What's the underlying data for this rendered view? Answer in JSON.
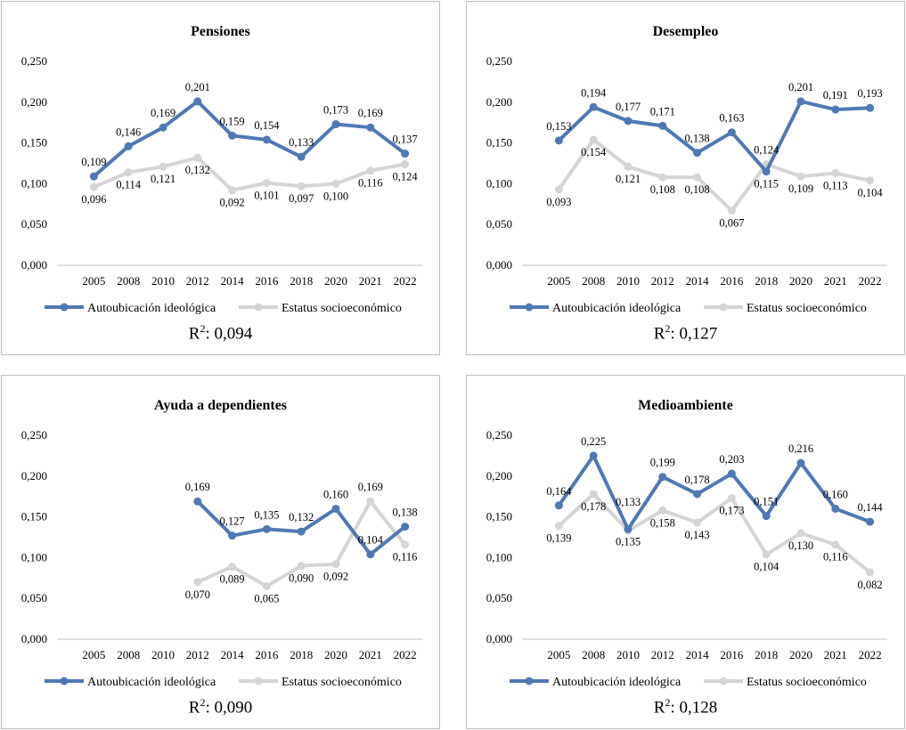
{
  "colors": {
    "series1": "#4e79b4",
    "series2": "#d4d4d4",
    "axis": "#bfbfbf",
    "text": "#000000"
  },
  "chart_data": [
    {
      "type": "line",
      "title": "Pensiones",
      "categories": [
        "2005",
        "2008",
        "2010",
        "2012",
        "2014",
        "2016",
        "2018",
        "2020",
        "2021",
        "2022"
      ],
      "ylim": [
        0,
        0.25
      ],
      "yticks": [
        "0,000",
        "0,050",
        "0,100",
        "0,150",
        "0,200",
        "0,250"
      ],
      "series": [
        {
          "name": "Autoubicación ideológica",
          "values": [
            0.109,
            0.146,
            0.169,
            0.201,
            0.159,
            0.154,
            0.133,
            0.173,
            0.169,
            0.137
          ],
          "labels": [
            "0,109",
            "0,146",
            "0,169",
            "0,201",
            "0,159",
            "0,154",
            "0,133",
            "0,173",
            "0,169",
            "0,137"
          ]
        },
        {
          "name": "Estatus socioeconómico",
          "values": [
            0.096,
            0.114,
            0.121,
            0.132,
            0.092,
            0.101,
            0.097,
            0.1,
            0.116,
            0.124
          ],
          "labels": [
            "0,096",
            "0,114",
            "0,121",
            "0,132",
            "0,092",
            "0,101",
            "0,097",
            "0,100",
            "0,116",
            "0,124"
          ]
        }
      ],
      "r2_prefix": "R",
      "r2_sup": "2",
      "r2_value": ": 0,094"
    },
    {
      "type": "line",
      "title": "Desempleo",
      "categories": [
        "2005",
        "2008",
        "2010",
        "2012",
        "2014",
        "2016",
        "2018",
        "2020",
        "2021",
        "2022"
      ],
      "ylim": [
        0,
        0.25
      ],
      "yticks": [
        "0,000",
        "0,050",
        "0,100",
        "0,150",
        "0,200",
        "0,250"
      ],
      "series": [
        {
          "name": "Autoubicación ideológica",
          "values": [
            0.153,
            0.194,
            0.177,
            0.171,
            0.138,
            0.163,
            0.115,
            0.201,
            0.191,
            0.193
          ],
          "labels": [
            "0,153",
            "0,194",
            "0,177",
            "0,171",
            "0,138",
            "0,163",
            "0,115",
            "0,201",
            "0,191",
            "0,193"
          ]
        },
        {
          "name": "Estatus socioeconómico",
          "values": [
            0.093,
            0.154,
            0.121,
            0.108,
            0.108,
            0.067,
            0.124,
            0.109,
            0.113,
            0.104
          ],
          "labels": [
            "0,093",
            "0,154",
            "0,121",
            "0,108",
            "0,108",
            "0,067",
            "0,124",
            "0,109",
            "0,113",
            "0,104"
          ]
        }
      ],
      "r2_prefix": "R",
      "r2_sup": "2",
      "r2_value": ": 0,127"
    },
    {
      "type": "line",
      "title": "Ayuda a dependientes",
      "categories": [
        "2005",
        "2008",
        "2010",
        "2012",
        "2014",
        "2016",
        "2018",
        "2020",
        "2021",
        "2022"
      ],
      "ylim": [
        0,
        0.25
      ],
      "yticks": [
        "0,000",
        "0,050",
        "0,100",
        "0,150",
        "0,200",
        "0,250"
      ],
      "series": [
        {
          "name": "Autoubicación ideológica",
          "values": [
            null,
            null,
            null,
            0.169,
            0.127,
            0.135,
            0.132,
            0.16,
            0.104,
            0.138
          ],
          "labels": [
            null,
            null,
            null,
            "0,169",
            "0,127",
            "0,135",
            "0,132",
            "0,160",
            "0,104",
            "0,138"
          ]
        },
        {
          "name": "Estatus socioeconómico",
          "values": [
            null,
            null,
            null,
            0.07,
            0.089,
            0.065,
            0.09,
            0.092,
            0.169,
            0.116
          ],
          "labels": [
            null,
            null,
            null,
            "0,070",
            "0,089",
            "0,065",
            "0,090",
            "0,092",
            "0,169",
            "0,116"
          ]
        }
      ],
      "r2_prefix": "R",
      "r2_sup": "2",
      "r2_value": ": 0,090"
    },
    {
      "type": "line",
      "title": "Medioambiente",
      "categories": [
        "2005",
        "2008",
        "2010",
        "2012",
        "2014",
        "2016",
        "2018",
        "2020",
        "2021",
        "2022"
      ],
      "ylim": [
        0,
        0.25
      ],
      "yticks": [
        "0,000",
        "0,050",
        "0,100",
        "0,150",
        "0,200",
        "0,250"
      ],
      "series": [
        {
          "name": "Autoubicación ideológica",
          "values": [
            0.164,
            0.225,
            0.135,
            0.199,
            0.178,
            0.203,
            0.151,
            0.216,
            0.16,
            0.144
          ],
          "labels": [
            "0,164",
            "0,225",
            "0,135",
            "0,199",
            "0,178",
            "0,203",
            "0,151",
            "0,216",
            "0,160",
            "0,144"
          ]
        },
        {
          "name": "Estatus socioeconómico",
          "values": [
            0.139,
            0.178,
            0.133,
            0.158,
            0.143,
            0.173,
            0.104,
            0.13,
            0.116,
            0.082
          ],
          "labels": [
            "0,139",
            "0,178",
            "0,133",
            "0,158",
            "0,143",
            "0,173",
            "0,104",
            "0,130",
            "0,116",
            "0,082"
          ]
        }
      ],
      "r2_prefix": "R",
      "r2_sup": "2",
      "r2_value": ": 0,128"
    }
  ]
}
